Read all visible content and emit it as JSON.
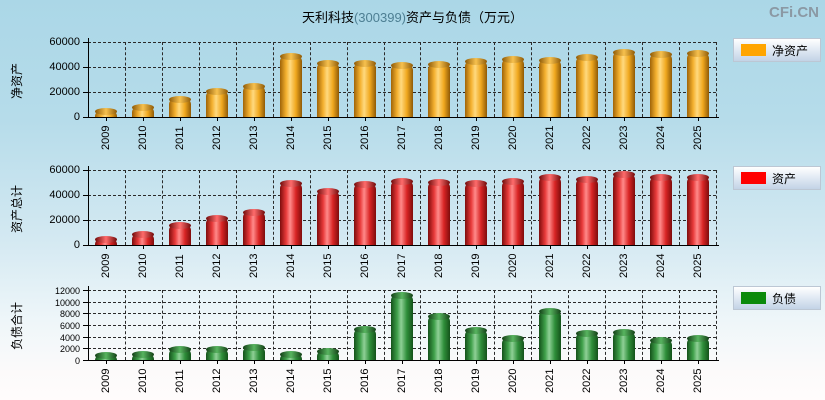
{
  "header": {
    "title_prefix": "天利科技",
    "title_code": "(300399)",
    "title_suffix": "资产与负债（万元）",
    "logo": "CFi.CN"
  },
  "chart_data": [
    {
      "type": "bar",
      "name": "net-assets",
      "axis_label": "净资产",
      "legend": "净资产",
      "accent": "#FFA500",
      "ylim": [
        0,
        60000
      ],
      "yticks": [
        0,
        20000,
        40000,
        60000
      ],
      "grid": true,
      "legend_position": "right",
      "categories": [
        "2009",
        "2010",
        "2011",
        "2012",
        "2013",
        "2014",
        "2015",
        "2016",
        "2017",
        "2018",
        "2019",
        "2020",
        "2021",
        "2022",
        "2023",
        "2024",
        "2025"
      ],
      "values": [
        6500,
        9500,
        16000,
        22400,
        26200,
        50000,
        44600,
        45100,
        43000,
        44300,
        46200,
        47700,
        47200,
        49300,
        53500,
        51900,
        52400
      ]
    },
    {
      "type": "bar",
      "name": "total-assets",
      "axis_label": "资产总计",
      "legend": "资产",
      "accent": "#FF0000",
      "ylim": [
        0,
        60000
      ],
      "yticks": [
        0,
        20000,
        40000,
        60000
      ],
      "grid": true,
      "legend_position": "right",
      "categories": [
        "2009",
        "2010",
        "2011",
        "2012",
        "2013",
        "2014",
        "2015",
        "2016",
        "2017",
        "2018",
        "2019",
        "2020",
        "2021",
        "2022",
        "2023",
        "2024",
        "2025"
      ],
      "values": [
        6600,
        10000,
        17200,
        23200,
        28000,
        51000,
        44900,
        50000,
        52500,
        52300,
        51300,
        52600,
        56000,
        54400,
        58700,
        56000,
        56000
      ]
    },
    {
      "type": "bar",
      "name": "total-liabilities",
      "axis_label": "负债合计",
      "legend": "负债",
      "accent": "#0B8A0B",
      "ylim": [
        0,
        12000
      ],
      "yticks": [
        0,
        2000,
        4000,
        6000,
        8000,
        10000,
        12000
      ],
      "grid": true,
      "legend_position": "right",
      "categories": [
        "2009",
        "2010",
        "2011",
        "2012",
        "2013",
        "2014",
        "2015",
        "2016",
        "2017",
        "2018",
        "2019",
        "2020",
        "2021",
        "2022",
        "2023",
        "2024",
        "2025"
      ],
      "values": [
        1200,
        1300,
        2300,
        2300,
        2600,
        1400,
        1900,
        5700,
        11400,
        7900,
        5400,
        4100,
        8800,
        4900,
        5100,
        3800,
        4100
      ]
    }
  ]
}
